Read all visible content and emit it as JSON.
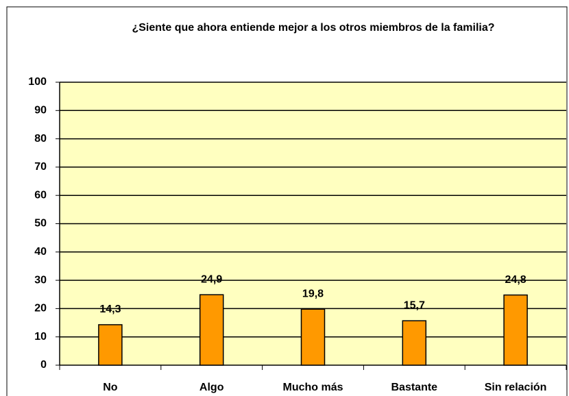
{
  "chart_data": {
    "type": "bar",
    "title": "¿Siente que ahora entiende mejor a los otros miembros de la familia?",
    "categories": [
      "No",
      "Algo",
      "Mucho más",
      "Bastante",
      "Sin relación"
    ],
    "values": [
      14.3,
      24.9,
      19.8,
      15.7,
      24.8
    ],
    "value_labels": [
      "14,3",
      "24,9",
      "19,8",
      "15,7",
      "24,8"
    ],
    "color": "#ff9900",
    "ylim": [
      0,
      100
    ],
    "yticks": [
      0,
      10,
      20,
      30,
      40,
      50,
      60,
      70,
      80,
      90,
      100
    ],
    "grid": true
  }
}
